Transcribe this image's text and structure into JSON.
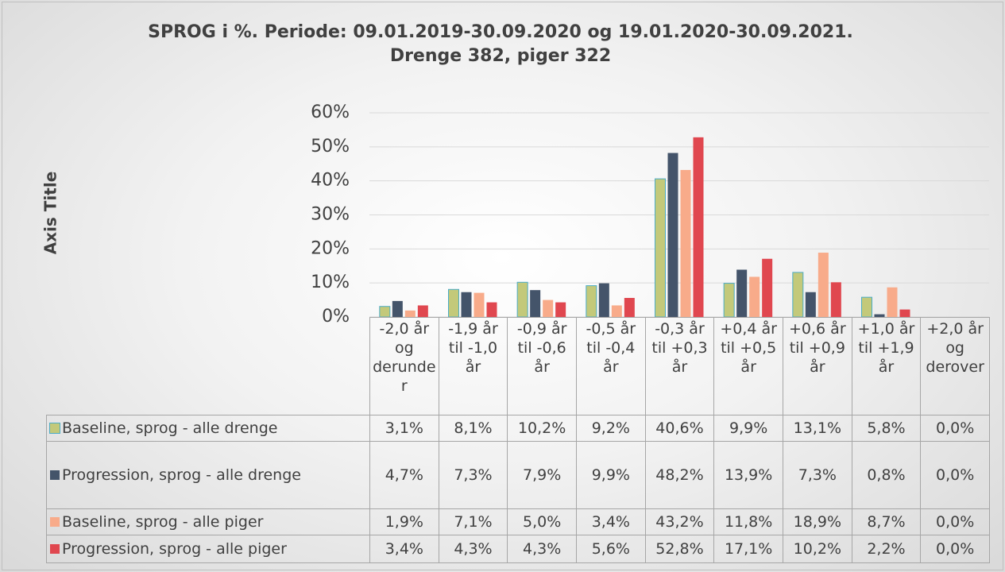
{
  "chart_data": {
    "type": "bar",
    "title": "SPROG i %. Periode: 09.01.2019-30.09.2020 og 19.01.2020-30.09.2021. Drenge 382, piger 322",
    "y_label": "Axis Title",
    "categories": [
      "-2,0 år og derunder",
      "-1,9 år til -1,0 år",
      "-0,9 år til -0,6 år",
      "-0,5 år til -0,4 år",
      "-0,3 år til +0,3 år",
      "+0,4 år til +0,5 år",
      "+0,6 år til +0,9 år",
      "+1,0 år til +1,9 år",
      "+2,0 år og derover"
    ],
    "series": [
      {
        "name": "Baseline, sprog - alle drenge",
        "color": "#c3c97a",
        "values": [
          3.1,
          8.1,
          10.2,
          9.2,
          40.6,
          9.9,
          13.1,
          5.8,
          0.0
        ],
        "value_labels": [
          "3,1%",
          "8,1%",
          "10,2%",
          "9,2%",
          "40,6%",
          "9,9%",
          "13,1%",
          "5,8%",
          "0,0%"
        ]
      },
      {
        "name": "Progression, sprog - alle drenge",
        "color": "#44546a",
        "values": [
          4.7,
          7.3,
          7.9,
          9.9,
          48.2,
          13.9,
          7.3,
          0.8,
          0.0
        ],
        "value_labels": [
          "4,7%",
          "7,3%",
          "7,9%",
          "9,9%",
          "48,2%",
          "13,9%",
          "7,3%",
          "0,8%",
          "0,0%"
        ]
      },
      {
        "name": "Baseline, sprog - alle piger",
        "color": "#f8ab8a",
        "values": [
          1.9,
          7.1,
          5.0,
          3.4,
          43.2,
          11.8,
          18.9,
          8.7,
          0.0
        ],
        "value_labels": [
          "1,9%",
          "7,1%",
          "5,0%",
          "3,4%",
          "43,2%",
          "11,8%",
          "18,9%",
          "8,7%",
          "0,0%"
        ]
      },
      {
        "name": "Progression, sprog - alle piger",
        "color": "#e0474f",
        "values": [
          3.4,
          4.3,
          4.3,
          5.6,
          52.8,
          17.1,
          10.2,
          2.2,
          0.0
        ],
        "value_labels": [
          "3,4%",
          "4,3%",
          "4,3%",
          "5,6%",
          "52,8%",
          "17,1%",
          "10,2%",
          "2,2%",
          "0,0%"
        ]
      }
    ],
    "ylim": [
      0,
      60
    ],
    "yticks": [
      {
        "value": 0,
        "label": "0%"
      },
      {
        "value": 10,
        "label": "10%"
      },
      {
        "value": 20,
        "label": "20%"
      },
      {
        "value": 30,
        "label": "30%"
      },
      {
        "value": 40,
        "label": "40%"
      },
      {
        "value": 50,
        "label": "50%"
      },
      {
        "value": 60,
        "label": "60%"
      }
    ],
    "grid": true
  }
}
